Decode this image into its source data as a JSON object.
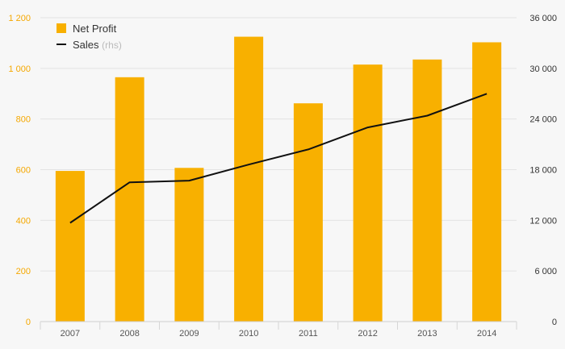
{
  "chart_data": {
    "type": "bar",
    "categories": [
      "2007",
      "2008",
      "2009",
      "2010",
      "2011",
      "2012",
      "2013",
      "2014"
    ],
    "series": [
      {
        "name": "Net Profit",
        "chart_type": "bar",
        "axis": "left",
        "color": "#f8b000",
        "values": [
          595,
          965,
          607,
          1125,
          862,
          1015,
          1035,
          1103
        ]
      },
      {
        "name": "Sales",
        "name_note": "(rhs)",
        "chart_type": "line",
        "axis": "right",
        "color": "#111111",
        "values": [
          11700,
          16500,
          16700,
          18600,
          20400,
          23000,
          24400,
          27000
        ]
      }
    ],
    "y_left": {
      "ylim": [
        0,
        1200
      ],
      "ticks": [
        0,
        200,
        400,
        600,
        800,
        1000,
        1200
      ],
      "tick_labels": [
        "0",
        "200",
        "400",
        "600",
        "800",
        "1 000",
        "1 200"
      ],
      "color": "#f5a800"
    },
    "y_right": {
      "ylim": [
        0,
        36000
      ],
      "ticks": [
        0,
        6000,
        12000,
        18000,
        24000,
        30000,
        36000
      ],
      "tick_labels": [
        "0",
        "6 000",
        "12 000",
        "18 000",
        "24 000",
        "30 000",
        "36 000"
      ],
      "color": "#333333"
    },
    "grid": true,
    "legend": "top-left",
    "title": "",
    "xlabel": "",
    "ylabel": ""
  }
}
